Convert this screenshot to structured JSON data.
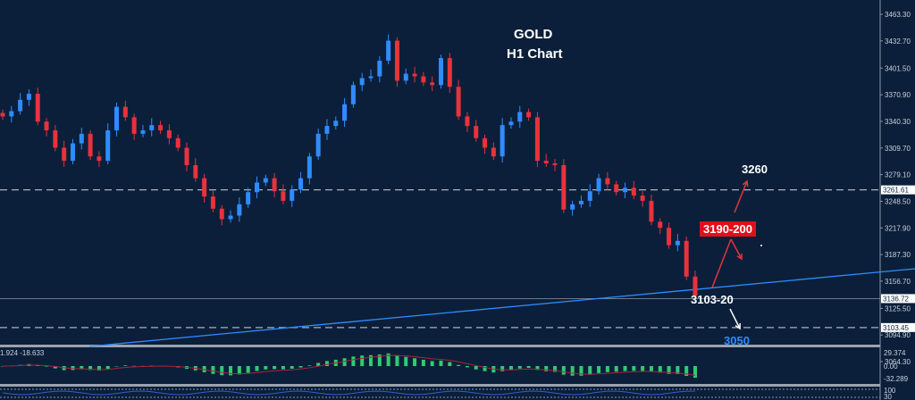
{
  "chart_data": {
    "type": "candlestick",
    "title": "GOLD",
    "subtitle": "H1 Chart",
    "ylim": [
      3050,
      3480
    ],
    "y_ticks": [
      "3463.30",
      "3432.70",
      "3401.50",
      "3370.90",
      "3340.30",
      "3309.70",
      "3279.10",
      "3248.50",
      "3217.90",
      "3187.30",
      "3156.70",
      "3125.50",
      "3094.90",
      "3064.30"
    ],
    "closes": [
      3346,
      3352,
      3365,
      3372,
      3340,
      3330,
      3310,
      3295,
      3315,
      3326,
      3300,
      3295,
      3330,
      3357,
      3345,
      3326,
      3330,
      3336,
      3330,
      3321,
      3310,
      3290,
      3275,
      3254,
      3240,
      3228,
      3232,
      3245,
      3259,
      3270,
      3275,
      3260,
      3249,
      3262,
      3275,
      3300,
      3326,
      3335,
      3341,
      3360,
      3382,
      3390,
      3392,
      3410,
      3433,
      3387,
      3395,
      3392,
      3385,
      3382,
      3413,
      3380,
      3346,
      3335,
      3321,
      3310,
      3300,
      3336,
      3340,
      3351,
      3345,
      3295,
      3292,
      3290,
      3239,
      3245,
      3249,
      3260,
      3275,
      3268,
      3259,
      3264,
      3255,
      3249,
      3225,
      3218,
      3198,
      3203,
      3162,
      3140
    ],
    "levels": [
      {
        "price": 3261.61,
        "label": "3261.61",
        "style": "dashed"
      },
      {
        "price": 3136.72,
        "label": "3136.72",
        "style": "solid"
      },
      {
        "price": 3103.45,
        "label": "3103.45",
        "style": "dashed"
      }
    ],
    "annotations": {
      "target_up": "3260",
      "resistance": "3190-200",
      "support": "3103-20",
      "target_down": "3050"
    },
    "macd": {
      "readout": "1.924 -18.633",
      "ticks": [
        "29.374",
        "0.00",
        "-32.289"
      ]
    },
    "lower_panel": {
      "ticks": [
        "100",
        "30"
      ]
    },
    "colors": {
      "bull": "#2f8cff",
      "bear": "#e8323c",
      "background": "#0b1f3a",
      "resistance_box": "#e0101a",
      "target_down": "#2f8cff",
      "macd_hist": "#2ecc71",
      "macd_signal": "#b0203a"
    }
  }
}
